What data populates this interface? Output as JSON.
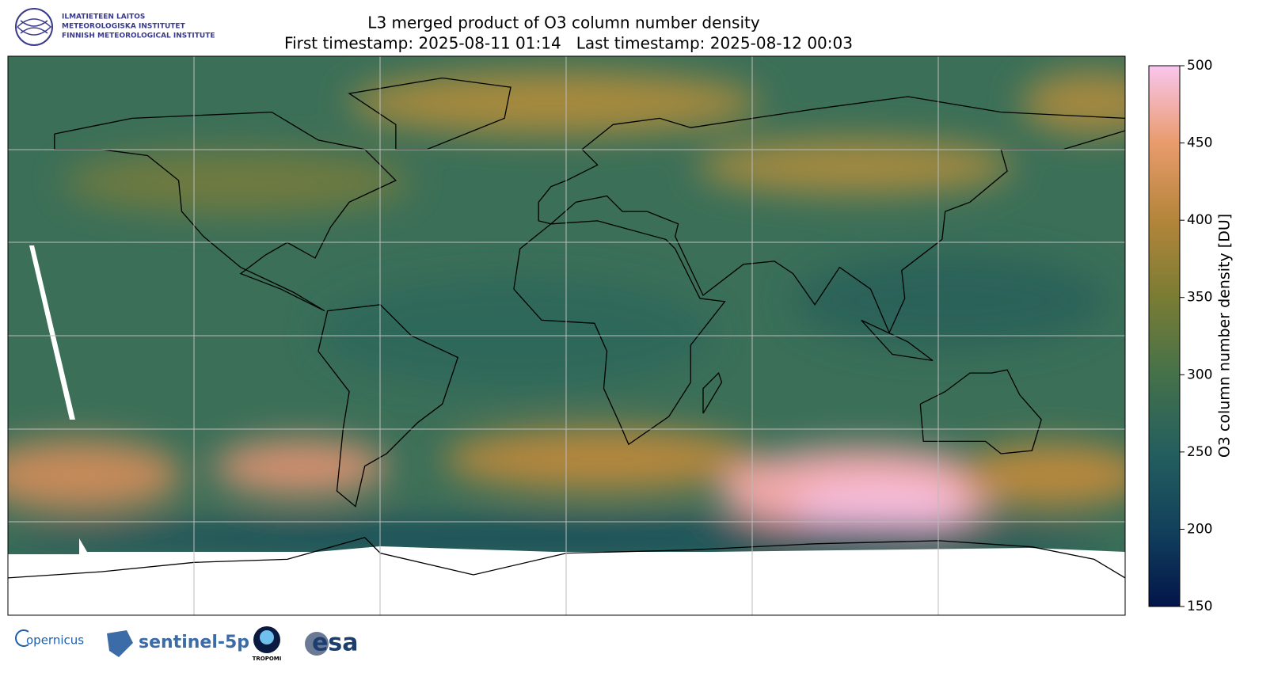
{
  "header": {
    "logo_lines": [
      "ILMATIETEEN LAITOS",
      "METEOROLOGISKA INSTITUTET",
      "FINNISH METEOROLOGICAL INSTITUTE"
    ],
    "title": "L3 merged product of O3 column number density",
    "subtitle": "First timestamp: 2025-08-11 01:14   Last timestamp: 2025-08-12 00:03"
  },
  "colorbar": {
    "label": "O3 column number density [DU]",
    "lim": [
      150,
      500
    ],
    "ticks": [
      150,
      200,
      250,
      300,
      350,
      400,
      450,
      500
    ],
    "colors": [
      "#03154a",
      "#12415c",
      "#245f5e",
      "#45714a",
      "#7a7c34",
      "#b3853a",
      "#e99b6c",
      "#f9c6ee"
    ]
  },
  "footer": {
    "logos": [
      "opernicus",
      "sentinel-5p",
      "TROPOMI",
      "esa"
    ]
  }
}
